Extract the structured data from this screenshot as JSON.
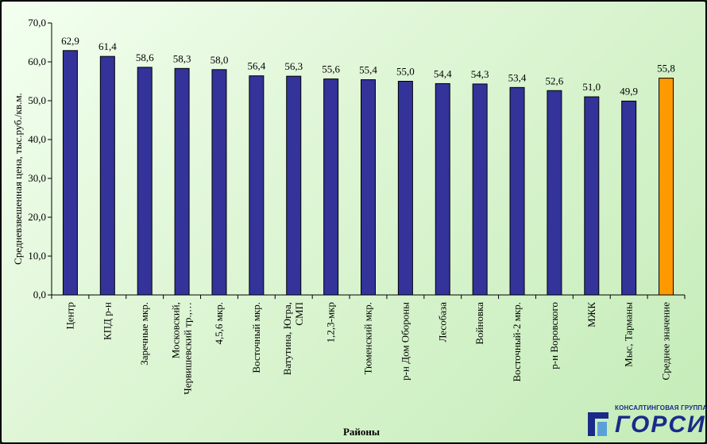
{
  "chart_data": {
    "type": "bar",
    "title": "",
    "xlabel": "Районы",
    "ylabel": "Средневзвешенная цена, тыс.руб./кв.м.",
    "ylim": [
      0,
      70
    ],
    "yticks": [
      "0,0",
      "10,0",
      "20,0",
      "30,0",
      "40,0",
      "50,0",
      "60,0",
      "70,0"
    ],
    "grid": false,
    "legend": "none",
    "categories": [
      "Центр",
      "КПД р-н",
      "Заречные мкр.",
      "Московский, Червишевский тр.,…",
      "4,5,6 мкр.",
      "Восточный мкр.",
      "Ватутина,  Югра, СМП",
      "1,2,3-мкр",
      "Тюменский мкр.",
      "р-н Дом Обороны",
      "Лесобаза",
      "Войновка",
      "Восточный-2 мкр.",
      "р-н Воровского",
      "МЖК",
      "Мыс, Тарманы",
      "Среднее значение"
    ],
    "values": [
      62.9,
      61.4,
      58.6,
      58.3,
      58.0,
      56.4,
      56.3,
      55.6,
      55.4,
      55.0,
      54.4,
      54.3,
      53.4,
      52.6,
      51.0,
      49.9,
      55.8
    ],
    "value_labels": [
      "62,9",
      "61,4",
      "58,6",
      "58,3",
      "58,0",
      "56,4",
      "56,3",
      "55,6",
      "55,4",
      "55,0",
      "54,4",
      "54,3",
      "53,4",
      "52,6",
      "51,0",
      "49,9",
      "55,8"
    ],
    "colors": {
      "bar": "#33339a",
      "highlight": "#ff9900",
      "edge": "#000000"
    },
    "highlight_index": 16
  },
  "logo": {
    "tagline": "КОНСАЛТИНГОВАЯ ГРУППА",
    "name": "ГОРСИ"
  }
}
